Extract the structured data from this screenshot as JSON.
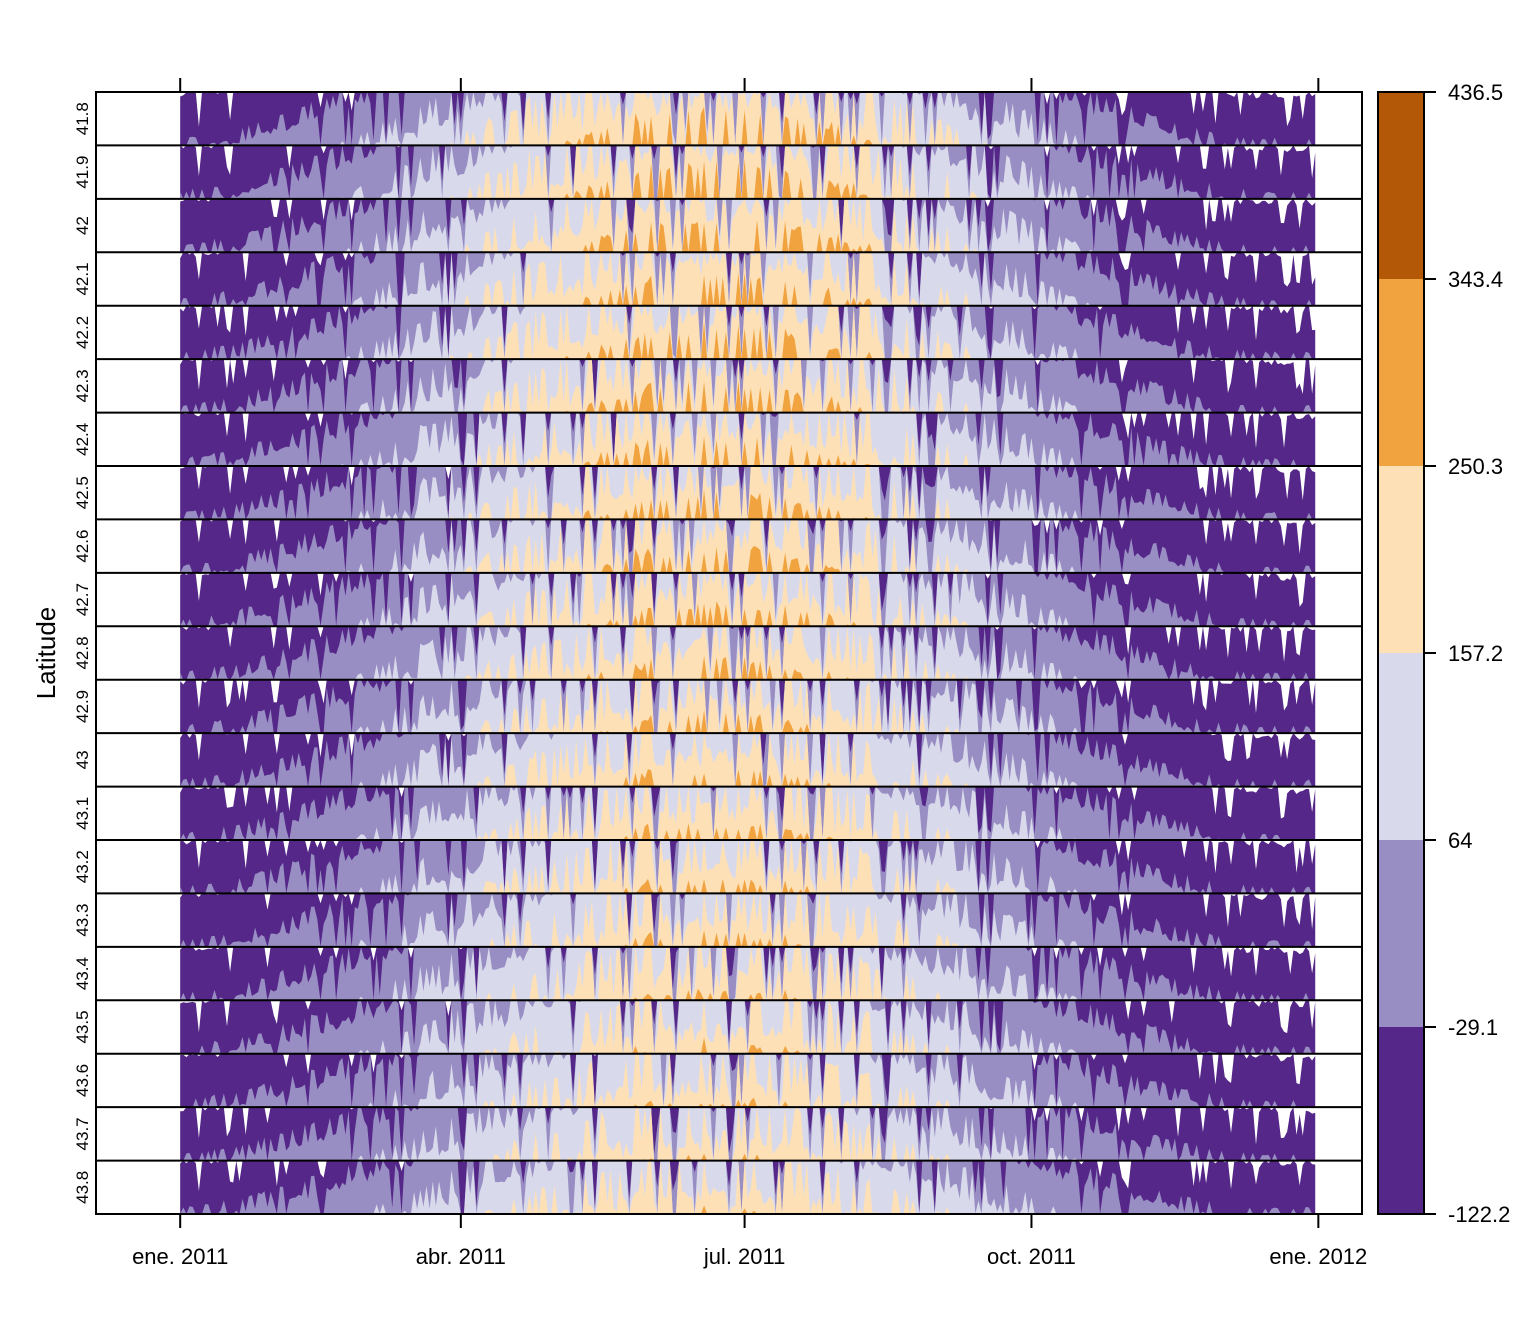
{
  "chart_data": {
    "type": "area",
    "title": "",
    "xlabel": "",
    "ylabel": "Latitude",
    "x_tick_labels": [
      "ene. 2011",
      "abr. 2011",
      "jul. 2011",
      "oct. 2011",
      "ene. 2012"
    ],
    "x_tick_dates": [
      "2011-01-01",
      "2011-04-01",
      "2011-07-01",
      "2011-10-01",
      "2012-01-01"
    ],
    "x_range": [
      "2010-12-05",
      "2012-01-15"
    ],
    "data_range": [
      "2011-01-01",
      "2011-12-31"
    ],
    "panels": [
      "41.8",
      "41.9",
      "42",
      "42.1",
      "42.2",
      "42.3",
      "42.4",
      "42.5",
      "42.6",
      "42.7",
      "42.8",
      "42.9",
      "43",
      "43.1",
      "43.2",
      "43.3",
      "43.4",
      "43.5",
      "43.6",
      "43.7",
      "43.8"
    ],
    "colorkey": {
      "breaks": [
        -122.2,
        -29.1,
        64,
        157.2,
        250.3,
        343.4,
        436.5
      ],
      "labels": [
        "-122.2",
        "-29.1",
        "64",
        "157.2",
        "250.3",
        "343.4",
        "436.5"
      ],
      "colors": [
        "#542788",
        "#998ec3",
        "#d8daeb",
        "#fee0b6",
        "#f1a340",
        "#b35806"
      ]
    },
    "band_width": 93.1,
    "baseline": -122.2,
    "legend_position": "right",
    "grid": false
  }
}
